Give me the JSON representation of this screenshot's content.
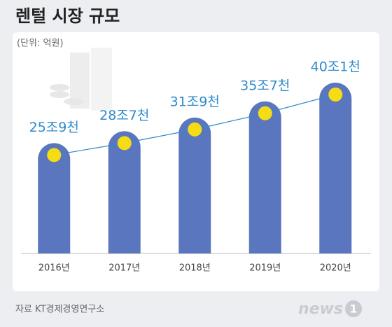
{
  "chart_data": {
    "type": "bar",
    "title": "렌털 시장 규모",
    "subtitle": "(단위: 억원)",
    "categories": [
      "2016년",
      "2017년",
      "2018년",
      "2019년",
      "2020년"
    ],
    "values": [
      259000,
      287000,
      319000,
      357000,
      401000
    ],
    "value_labels": [
      "25조9천",
      "28조7천",
      "31조9천",
      "35조7천",
      "40조1천"
    ],
    "color": "#5a76be",
    "line_color": "#2e8bc9",
    "marker_color": "#f5dc14",
    "source": "자료 KT경제경영연구소",
    "logo_word": "news",
    "logo_mark": "1"
  }
}
